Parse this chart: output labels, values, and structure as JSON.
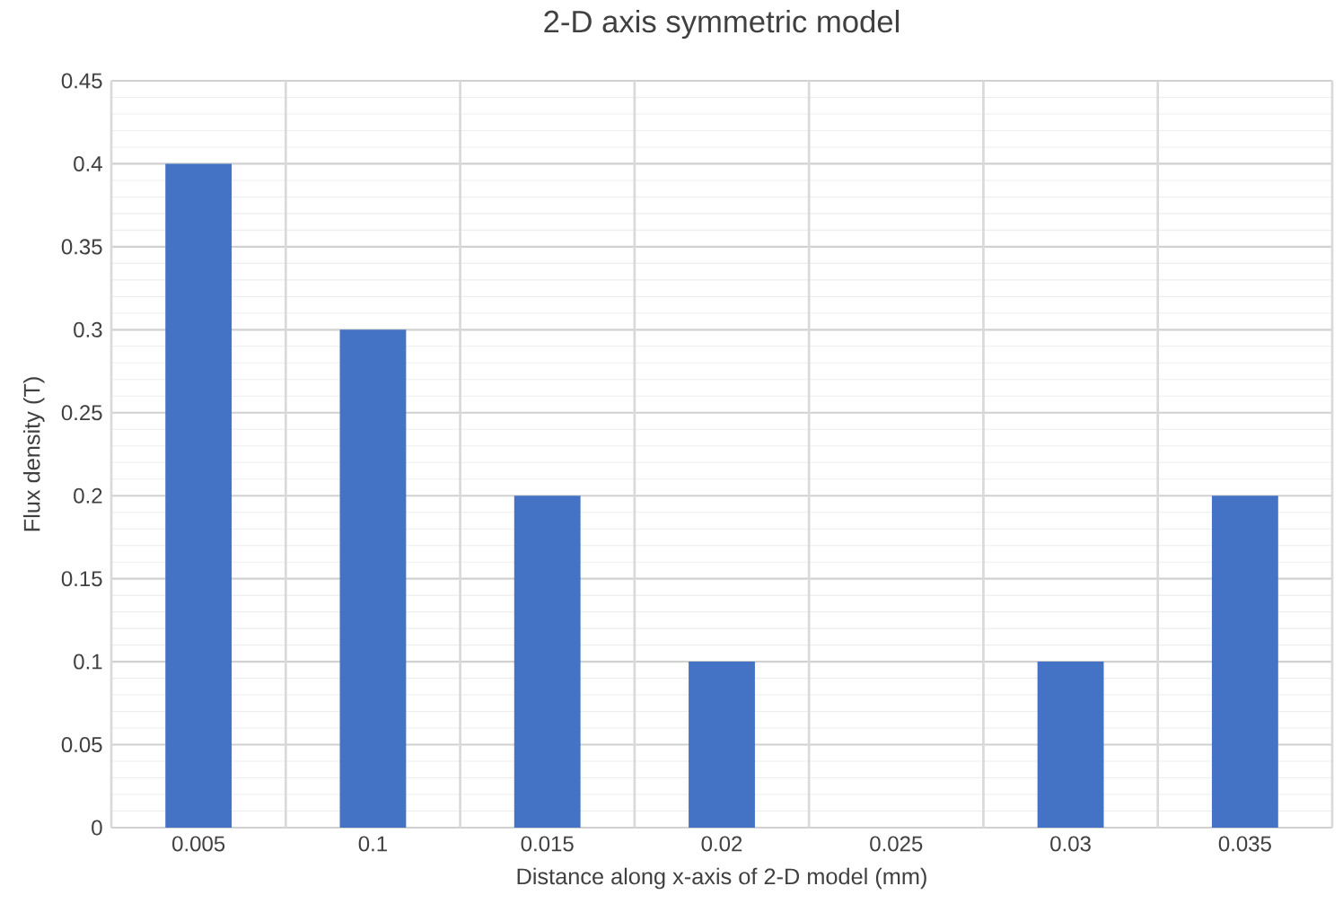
{
  "chart_data": {
    "type": "bar",
    "title": "2-D axis symmetric model",
    "xlabel": "Distance along  x-axis of 2-D model (mm)",
    "ylabel": "Flux density (T)",
    "categories": [
      "0.005",
      "0.1",
      "0.015",
      "0.02",
      "0.025",
      "0.03",
      "0.035"
    ],
    "values": [
      0.4,
      0.3,
      0.2,
      0.1,
      0,
      0.1,
      0.2
    ],
    "color": "#4472c4",
    "ylim": [
      0,
      0.45
    ],
    "yticks": [
      0,
      0.05,
      0.1,
      0.15,
      0.2,
      0.25,
      0.3,
      0.35,
      0.4,
      0.45
    ],
    "grid": true
  }
}
